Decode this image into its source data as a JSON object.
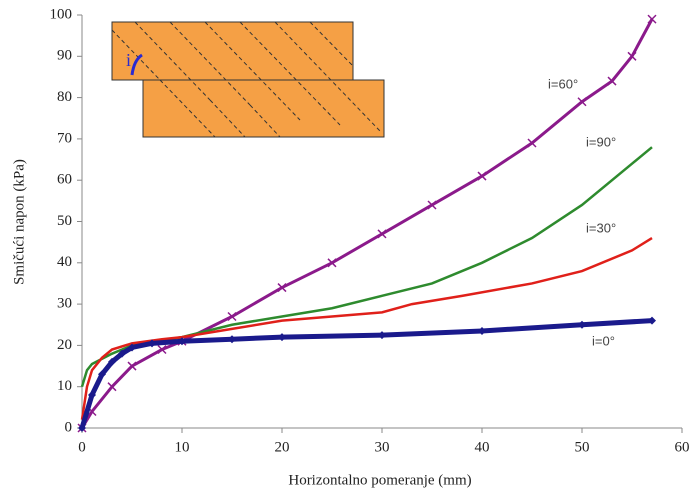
{
  "chart_data": {
    "type": "line",
    "xlabel": "Horizontalno pomeranje (mm)",
    "ylabel": "Smičući napon (kPa)",
    "inset_label": "i",
    "xlim": [
      0,
      60
    ],
    "xticks": [
      0,
      10,
      20,
      30,
      40,
      50,
      60
    ],
    "ylim": [
      0,
      100
    ],
    "yticks": [
      0,
      10,
      20,
      30,
      40,
      50,
      60,
      70,
      80,
      90,
      100
    ],
    "series": [
      {
        "name": "i=60°",
        "color": "#8b1a8b",
        "marker": "x",
        "x": [
          0,
          1,
          3,
          5,
          8,
          10,
          15,
          20,
          25,
          30,
          35,
          40,
          45,
          50,
          53,
          55,
          57
        ],
        "values": [
          0,
          4,
          10,
          15,
          19,
          21,
          27,
          34,
          40,
          47,
          54,
          61,
          69,
          79,
          84,
          90,
          99
        ]
      },
      {
        "name": "i=90°",
        "color": "#2e8b2e",
        "marker": "none",
        "x": [
          0,
          0.5,
          1,
          3,
          5,
          10,
          15,
          20,
          25,
          30,
          35,
          40,
          45,
          50,
          55,
          57
        ],
        "values": [
          10,
          14,
          15.5,
          18,
          20,
          22,
          25,
          27,
          29,
          32,
          35,
          40,
          46,
          54,
          64,
          68
        ]
      },
      {
        "name": "i=30°",
        "color": "#e0201a",
        "marker": "none",
        "x": [
          0,
          0.5,
          1,
          2,
          3,
          5,
          8,
          10,
          15,
          20,
          25,
          30,
          33,
          38,
          45,
          50,
          55,
          57
        ],
        "values": [
          2,
          10,
          14,
          17,
          19,
          20.5,
          21.5,
          22,
          24,
          26,
          27,
          28,
          30,
          32,
          35,
          38,
          43,
          46
        ]
      },
      {
        "name": "i=0°",
        "color": "#1a1a8c",
        "marker": "diamond",
        "x": [
          0,
          1,
          2,
          3,
          4,
          5,
          7,
          10,
          15,
          20,
          30,
          40,
          50,
          57
        ],
        "values": [
          0,
          8,
          13,
          16,
          18,
          19.5,
          20.5,
          21,
          21.5,
          22,
          22.5,
          23.5,
          25,
          26
        ]
      }
    ]
  }
}
